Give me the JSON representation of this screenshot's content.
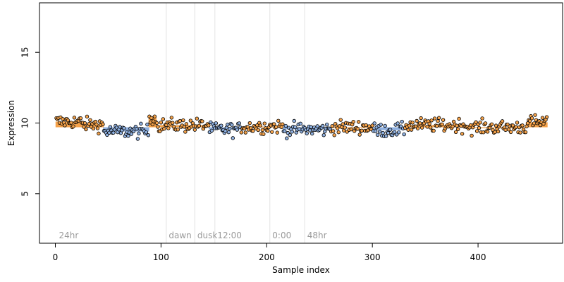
{
  "chart_data": {
    "type": "scatter",
    "title": "",
    "xlabel": "Sample index",
    "ylabel": "Expression",
    "xlim": [
      -15,
      480
    ],
    "ylim": [
      1.5,
      18.5
    ],
    "xticks": [
      0,
      100,
      200,
      300,
      400
    ],
    "yticks": [
      5,
      10,
      15
    ],
    "grid": false,
    "legend": "none",
    "annotations": [
      {
        "label": "24hr",
        "x": 2
      },
      {
        "label": "dawn",
        "x": 106
      },
      {
        "label": "dusk",
        "x": 133
      },
      {
        "label": "12:00",
        "x": 152
      },
      {
        "label": "0:00",
        "x": 204
      },
      {
        "label": "48hr",
        "x": 237
      }
    ],
    "vertical_lines": [
      105,
      132,
      151,
      203,
      236
    ],
    "colors": {
      "above": "#f5a24a",
      "below": "#8fb0e0",
      "point_edge": "#000000",
      "vline": "#e2e2e2",
      "annotation": "#9a9a9a"
    },
    "baseline": 9.7,
    "segments": [
      {
        "x_start": 1,
        "x_end": 24,
        "level": 10.1
      },
      {
        "x_start": 25,
        "x_end": 45,
        "level": 9.9
      },
      {
        "x_start": 46,
        "x_end": 88,
        "level": 9.4
      },
      {
        "x_start": 89,
        "x_end": 95,
        "level": 10.4
      },
      {
        "x_start": 96,
        "x_end": 145,
        "level": 9.85
      },
      {
        "x_start": 146,
        "x_end": 175,
        "level": 9.55
      },
      {
        "x_start": 176,
        "x_end": 215,
        "level": 9.75
      },
      {
        "x_start": 216,
        "x_end": 260,
        "level": 9.55
      },
      {
        "x_start": 261,
        "x_end": 300,
        "level": 9.7
      },
      {
        "x_start": 301,
        "x_end": 330,
        "level": 9.5
      },
      {
        "x_start": 331,
        "x_end": 390,
        "level": 9.85
      },
      {
        "x_start": 391,
        "x_end": 445,
        "level": 9.7
      },
      {
        "x_start": 446,
        "x_end": 465,
        "level": 10.05
      }
    ],
    "n_points": 465,
    "noise_sd": 0.35
  }
}
